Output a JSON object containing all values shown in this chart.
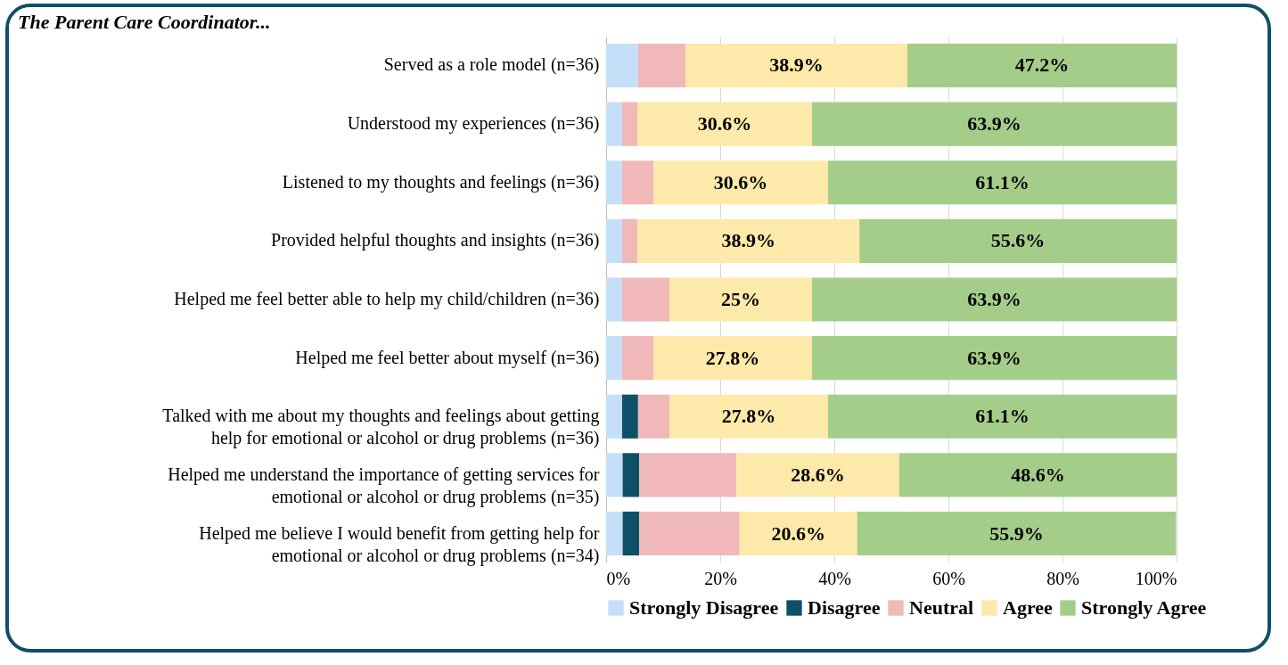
{
  "chart_data": {
    "type": "bar",
    "orientation": "horizontal",
    "stacked": true,
    "title": "The Parent Care Coordinator...",
    "categories": [
      "Served as a role model (n=36)",
      "Understood my experiences (n=36)",
      "Listened to my thoughts and feelings (n=36)",
      "Provided helpful thoughts and insights (n=36)",
      "Helped me feel better able to help my child/children (n=36)",
      "Helped me feel better about myself (n=36)",
      "Talked with me about my thoughts and feelings about getting help for emotional or alcohol or drug problems (n=36)",
      "Helped me understand the importance of getting services for emotional or alcohol or drug problems (n=35)",
      "Helped me believe I would benefit from getting help for emotional or alcohol or drug problems (n=34)"
    ],
    "series": [
      {
        "name": "Strongly Disagree",
        "color": "#c5dff8",
        "values": [
          5.6,
          2.8,
          2.8,
          2.8,
          2.8,
          2.8,
          2.8,
          2.9,
          2.9
        ]
      },
      {
        "name": "Disagree",
        "color": "#0d5068",
        "values": [
          0,
          0,
          0,
          0,
          0,
          0,
          2.8,
          2.9,
          2.9
        ]
      },
      {
        "name": "Neutral",
        "color": "#f0b8b8",
        "values": [
          8.3,
          2.7,
          5.5,
          2.7,
          8.3,
          5.5,
          5.5,
          17.0,
          17.6
        ]
      },
      {
        "name": "Agree",
        "color": "#fde9a9",
        "values": [
          38.9,
          30.6,
          30.6,
          38.9,
          25,
          27.8,
          27.8,
          28.6,
          20.6
        ],
        "value_labels": [
          "38.9%",
          "30.6%",
          "30.6%",
          "38.9%",
          "25%",
          "27.8%",
          "27.8%",
          "28.6%",
          "20.6%"
        ]
      },
      {
        "name": "Strongly Agree",
        "color": "#a5cd8a",
        "values": [
          47.2,
          63.9,
          61.1,
          55.6,
          63.9,
          63.9,
          61.1,
          48.6,
          55.9
        ],
        "value_labels": [
          "47.2%",
          "63.9%",
          "61.1%",
          "55.6%",
          "63.9%",
          "63.9%",
          "61.1%",
          "48.6%",
          "55.9%"
        ]
      }
    ],
    "xlim": [
      0,
      100
    ],
    "xticks": [
      {
        "value": 0,
        "label": "0%"
      },
      {
        "value": 20,
        "label": "20%"
      },
      {
        "value": 40,
        "label": "40%"
      },
      {
        "value": 60,
        "label": "60%"
      },
      {
        "value": 80,
        "label": "80%"
      },
      {
        "value": 100,
        "label": "100%"
      }
    ],
    "grid": "x",
    "legend": "bottom"
  }
}
